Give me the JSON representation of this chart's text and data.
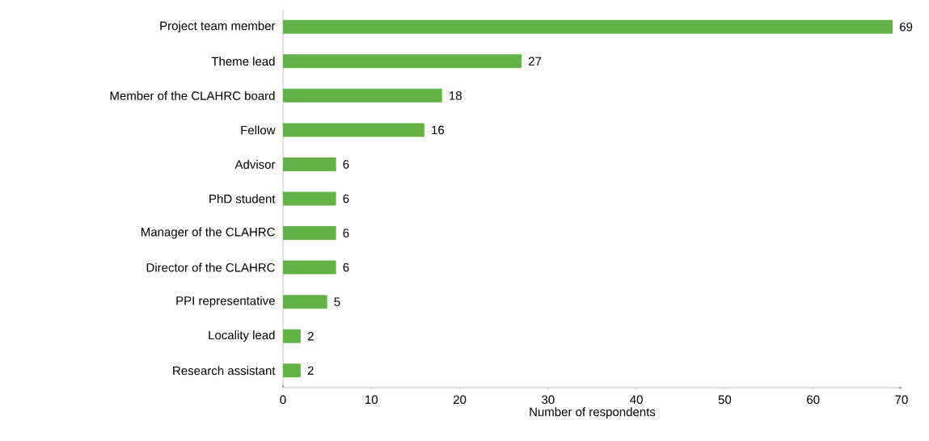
{
  "chart_data": {
    "type": "bar",
    "orientation": "horizontal",
    "xlabel": "Number of respondents",
    "categories": [
      "Project team member",
      "Theme lead",
      "Member of the CLAHRC board",
      "Fellow",
      "Advisor",
      "PhD student",
      "Manager of the CLAHRC",
      "Director of the CLAHRC",
      "PPI representative",
      "Locality lead",
      "Research assistant"
    ],
    "values": [
      69,
      27,
      18,
      16,
      6,
      6,
      6,
      6,
      5,
      2,
      2
    ],
    "color": "#62b246",
    "xlim": [
      0,
      70
    ],
    "xticks": [
      0,
      10,
      20,
      30,
      40,
      50,
      60,
      70
    ],
    "data_labels": true
  }
}
